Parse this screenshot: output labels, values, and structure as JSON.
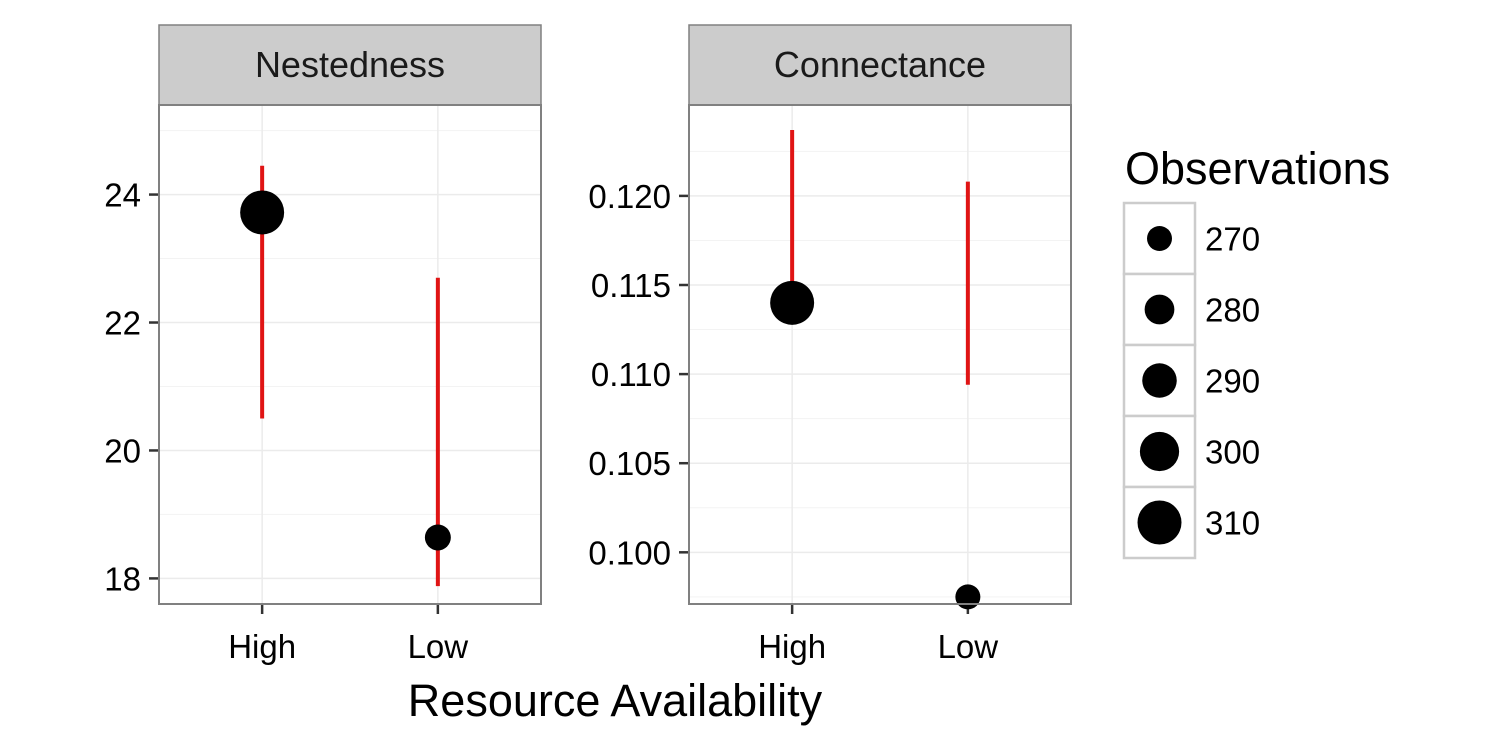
{
  "chart_data": {
    "type": "scatter",
    "xlabel": "Resource Availability",
    "categories": [
      "High",
      "Low"
    ],
    "colors": {
      "errorbar": "#e01414",
      "point": "#000000",
      "strip": "#cccccc",
      "gridline": "#ebebeb",
      "border": "#808080"
    },
    "legend": {
      "title": "Observations",
      "placement": "right",
      "entries": [
        {
          "label": "270",
          "value": 270
        },
        {
          "label": "280",
          "value": 280
        },
        {
          "label": "290",
          "value": 290
        },
        {
          "label": "300",
          "value": 300
        },
        {
          "label": "310",
          "value": 310
        }
      ]
    },
    "panels": [
      {
        "title": "Nestedness",
        "ylim": [
          17.6,
          25.4
        ],
        "yticks": [
          18,
          20,
          22,
          24
        ],
        "ytick_labels": [
          "18",
          "20",
          "22",
          "24"
        ],
        "points": [
          {
            "x": "High",
            "y": 23.72,
            "ymin": 20.5,
            "ymax": 24.45,
            "observations": 310
          },
          {
            "x": "Low",
            "y": 18.64,
            "ymin": 17.88,
            "ymax": 22.7,
            "observations": 272
          }
        ]
      },
      {
        "title": "Connectance",
        "ylim": [
          0.0971,
          0.1251
        ],
        "yticks": [
          0.1,
          0.105,
          0.11,
          0.115,
          0.12
        ],
        "ytick_labels": [
          "0.100",
          "0.105",
          "0.110",
          "0.115",
          "0.120"
        ],
        "points": [
          {
            "x": "High",
            "y": 0.114,
            "ymin": 0.1151,
            "ymax": 0.1237,
            "observations": 310
          },
          {
            "x": "Low",
            "y": 0.0975,
            "ymin": 0.1094,
            "ymax": 0.1208,
            "observations": 268
          }
        ]
      }
    ]
  }
}
